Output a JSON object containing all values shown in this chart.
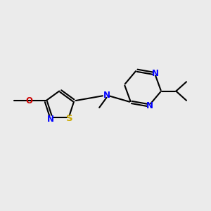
{
  "bg_color": "#ebebeb",
  "bond_color": "#000000",
  "n_color": "#0000ff",
  "o_color": "#cc0000",
  "s_color": "#ccaa00",
  "font_size": 8.5,
  "linewidth": 1.5,
  "figsize": [
    3.0,
    3.0
  ],
  "dpi": 100,
  "xlim": [
    0,
    10
  ],
  "ylim": [
    0,
    10
  ]
}
